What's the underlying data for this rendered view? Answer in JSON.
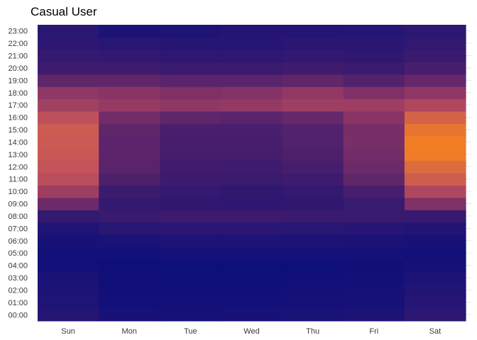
{
  "chart_data": {
    "type": "heatmap",
    "title": "Casual User",
    "xlabel": "",
    "ylabel": "",
    "x_categories": [
      "Sun",
      "Mon",
      "Tue",
      "Wed",
      "Thu",
      "Fri",
      "Sat"
    ],
    "y_categories": [
      "00:00",
      "01:00",
      "02:00",
      "03:00",
      "04:00",
      "05:00",
      "06:00",
      "07:00",
      "08:00",
      "09:00",
      "10:00",
      "11:00",
      "12:00",
      "13:00",
      "14:00",
      "15:00",
      "16:00",
      "17:00",
      "18:00",
      "19:00",
      "20:00",
      "21:00",
      "22:00",
      "23:00"
    ],
    "value_range": [
      0,
      1
    ],
    "color_scale": [
      "#0d0f7a",
      "#3e1b6e",
      "#8a3466",
      "#c4545a",
      "#f58220"
    ],
    "grid": true,
    "legend": "none",
    "values": [
      [
        0.12,
        0.05,
        0.04,
        0.05,
        0.06,
        0.08,
        0.16
      ],
      [
        0.09,
        0.03,
        0.03,
        0.03,
        0.04,
        0.05,
        0.13
      ],
      [
        0.08,
        0.02,
        0.02,
        0.02,
        0.03,
        0.04,
        0.1
      ],
      [
        0.06,
        0.02,
        0.01,
        0.01,
        0.02,
        0.03,
        0.08
      ],
      [
        0.03,
        0.01,
        0.01,
        0.01,
        0.01,
        0.02,
        0.04
      ],
      [
        0.03,
        0.03,
        0.04,
        0.04,
        0.04,
        0.04,
        0.03
      ],
      [
        0.05,
        0.07,
        0.08,
        0.08,
        0.08,
        0.07,
        0.05
      ],
      [
        0.09,
        0.14,
        0.15,
        0.15,
        0.14,
        0.13,
        0.1
      ],
      [
        0.2,
        0.22,
        0.24,
        0.24,
        0.23,
        0.22,
        0.21
      ],
      [
        0.4,
        0.2,
        0.18,
        0.17,
        0.18,
        0.22,
        0.46
      ],
      [
        0.58,
        0.24,
        0.2,
        0.18,
        0.2,
        0.28,
        0.65
      ],
      [
        0.7,
        0.3,
        0.24,
        0.22,
        0.25,
        0.36,
        0.8
      ],
      [
        0.75,
        0.34,
        0.26,
        0.25,
        0.28,
        0.4,
        0.88
      ],
      [
        0.77,
        0.35,
        0.27,
        0.27,
        0.3,
        0.42,
        0.97
      ],
      [
        0.78,
        0.35,
        0.28,
        0.28,
        0.31,
        0.44,
        0.98
      ],
      [
        0.79,
        0.36,
        0.29,
        0.29,
        0.32,
        0.44,
        0.93
      ],
      [
        0.72,
        0.42,
        0.36,
        0.34,
        0.38,
        0.5,
        0.83
      ],
      [
        0.6,
        0.55,
        0.52,
        0.54,
        0.58,
        0.58,
        0.66
      ],
      [
        0.52,
        0.5,
        0.46,
        0.48,
        0.53,
        0.46,
        0.52
      ],
      [
        0.36,
        0.36,
        0.34,
        0.34,
        0.36,
        0.32,
        0.38
      ],
      [
        0.25,
        0.25,
        0.23,
        0.23,
        0.25,
        0.23,
        0.28
      ],
      [
        0.2,
        0.19,
        0.17,
        0.17,
        0.19,
        0.18,
        0.22
      ],
      [
        0.17,
        0.14,
        0.12,
        0.13,
        0.15,
        0.15,
        0.19
      ],
      [
        0.15,
        0.08,
        0.09,
        0.11,
        0.11,
        0.12,
        0.16
      ]
    ]
  }
}
